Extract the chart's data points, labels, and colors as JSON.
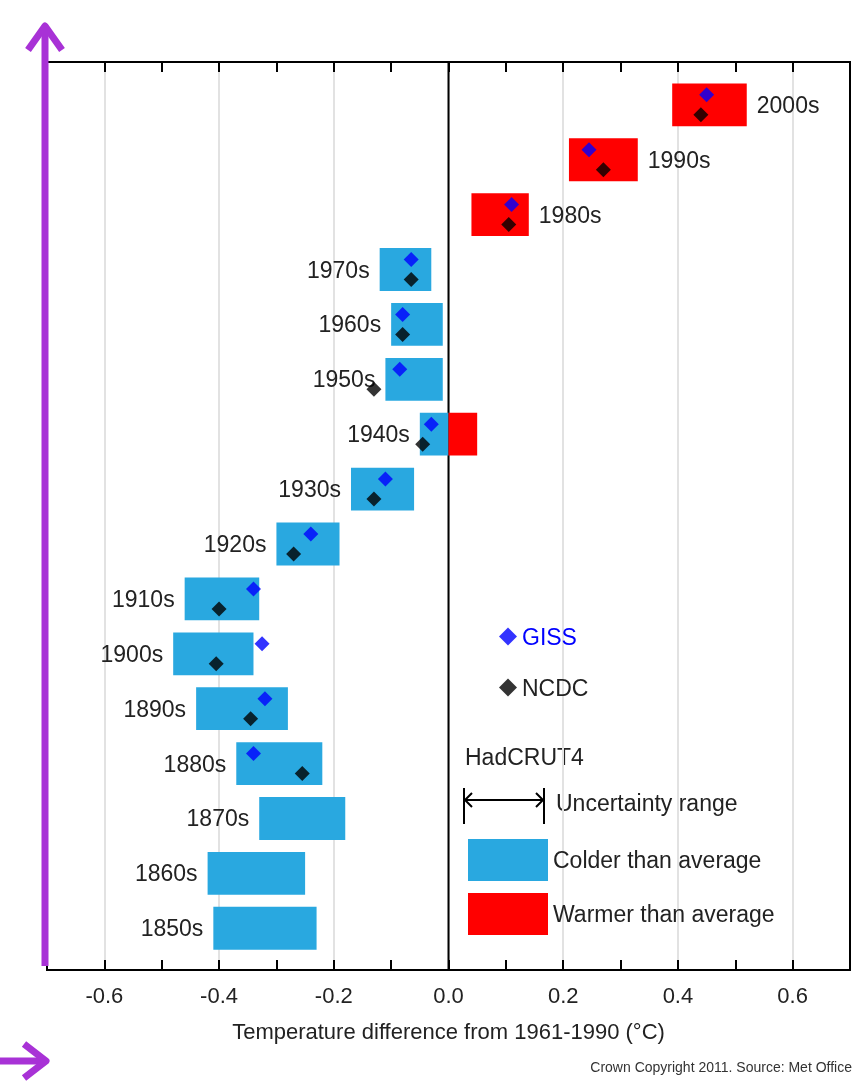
{
  "chart_data": {
    "type": "bar",
    "orientation": "horizontal",
    "xlabel": "Temperature difference from 1961-1990 (°C)",
    "legend_title": "HadCRUT4",
    "legend": "bottom right",
    "grid": "x",
    "tick_labels": "x",
    "marker": "diamond",
    "categories": [
      "2000s",
      "1990s",
      "1980s",
      "1970s",
      "1960s",
      "1950s",
      "1940s",
      "1930s",
      "1920s",
      "1910s",
      "1900s",
      "1890s",
      "1880s",
      "1870s",
      "1860s",
      "1850s"
    ],
    "xlim": [
      -0.7,
      0.7
    ],
    "xticks": [
      -0.6,
      {
        "value": -0.5,
        "label": null
      },
      -0.4,
      {
        "value": -0.3,
        "label": null
      },
      -0.2,
      {
        "value": -0.1,
        "label": null
      },
      {
        "value": 0,
        "label": "0.0"
      },
      {
        "value": 0.1,
        "label": null
      },
      0.2,
      {
        "value": 0.3,
        "label": null
      },
      0.4,
      {
        "value": 0.5,
        "label": null
      },
      0.6
    ],
    "series": [
      {
        "name": "Colder than average",
        "color": "#29a8e0",
        "base": [
          null,
          null,
          null,
          -0.12,
          -0.1,
          -0.11,
          -0.05,
          -0.17,
          -0.3,
          -0.46,
          -0.48,
          -0.44,
          -0.37,
          -0.33,
          -0.42,
          -0.41
        ],
        "values": [
          null,
          null,
          null,
          0.09,
          0.09,
          0.1,
          0.05,
          0.11,
          0.11,
          0.13,
          0.14,
          0.16,
          0.15,
          0.15,
          0.17,
          0.18
        ]
      },
      {
        "name": "Warmer than average",
        "color": "#ff0000",
        "base": [
          0.39,
          0.21,
          0.04,
          null,
          null,
          null,
          0,
          null,
          null,
          null,
          null,
          null,
          null,
          null,
          null,
          null
        ],
        "values": [
          0.13,
          0.12,
          0.1,
          null,
          null,
          null,
          0.05,
          null,
          null,
          null,
          null,
          null,
          null,
          null,
          null,
          null
        ]
      },
      {
        "name": "GISS",
        "type": "scatter",
        "color": "#0000ff",
        "values": [
          0.45,
          0.245,
          0.11,
          -0.065,
          -0.08,
          -0.085,
          -0.03,
          -0.11,
          -0.24,
          -0.34,
          -0.325,
          -0.32,
          -0.34,
          null,
          null,
          null
        ]
      },
      {
        "name": "NCDC",
        "type": "scatter",
        "color": "#000000",
        "values": [
          0.44,
          0.27,
          0.105,
          -0.065,
          -0.08,
          -0.13,
          -0.045,
          -0.13,
          -0.27,
          -0.4,
          -0.405,
          -0.345,
          -0.255,
          null,
          null,
          null
        ]
      }
    ],
    "ref_lines": [
      {
        "axis": "x",
        "value": 0,
        "color": "#000000"
      }
    ],
    "annotations": [
      "Uncertainty range",
      "Crown Copyright 2011. Source: Met Office"
    ]
  }
}
